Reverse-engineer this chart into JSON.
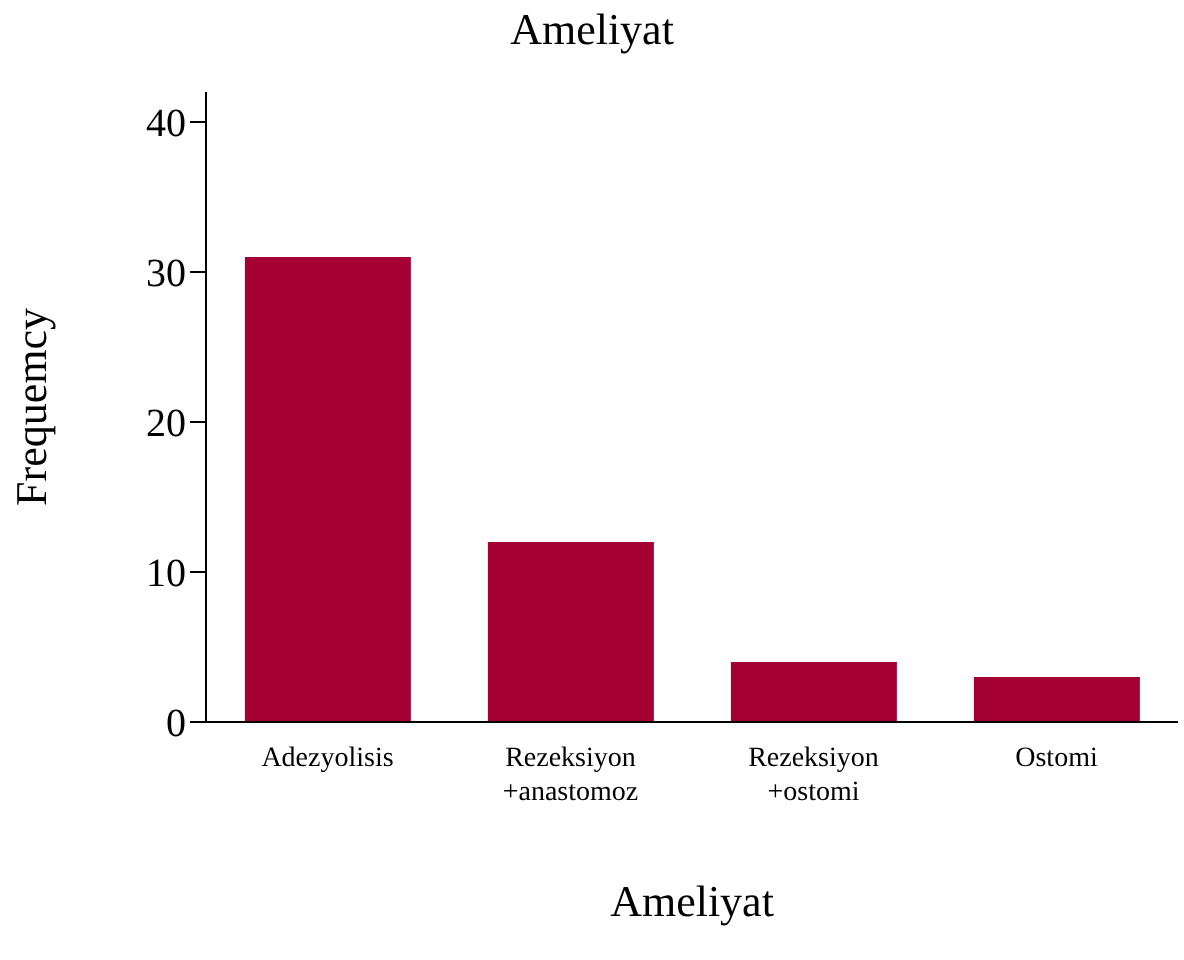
{
  "chart_data": {
    "type": "bar",
    "title": "Ameliyat",
    "xlabel": "Ameliyat",
    "ylabel": "Frequemcy",
    "categories": [
      "Adezyolisis",
      "Rezeksiyon\n+anastomoz",
      "Rezeksiyon\n+ostomi",
      "Ostomi"
    ],
    "values": [
      31,
      12,
      4,
      3
    ],
    "color": "#a50034",
    "ylim": [
      0,
      42
    ],
    "yticks": [
      0,
      10,
      20,
      30,
      40
    ],
    "grid": false,
    "legend": false
  }
}
